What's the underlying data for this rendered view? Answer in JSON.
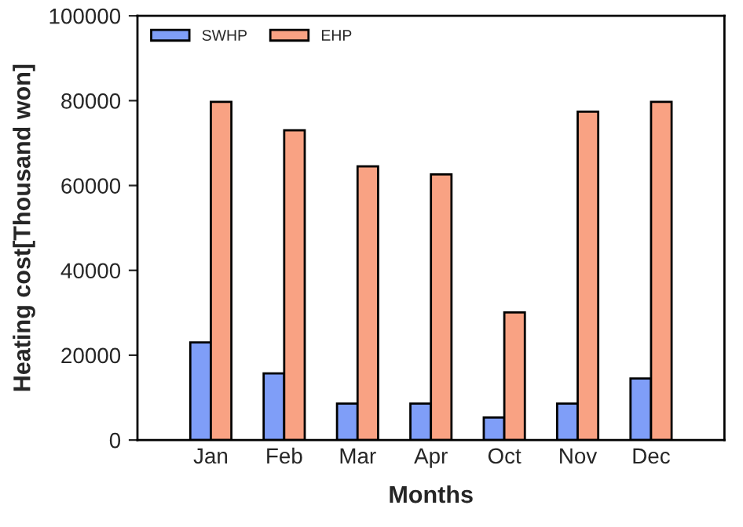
{
  "chart_data": {
    "type": "bar",
    "xlabel": "Months",
    "ylabel": "Heating cost[Thousand won]",
    "categories": [
      "Jan",
      "Feb",
      "Mar",
      "Apr",
      "Oct",
      "Nov",
      "Dec"
    ],
    "series": [
      {
        "name": "SWHP",
        "color": "#7f9ef8",
        "values": [
          23000,
          15700,
          8600,
          8600,
          5300,
          8600,
          14500
        ]
      },
      {
        "name": "EHP",
        "color": "#f9a283",
        "values": [
          79700,
          73000,
          64500,
          62600,
          30100,
          77400,
          79700
        ]
      }
    ],
    "ylim": [
      0,
      100000
    ],
    "yticks": [
      0,
      20000,
      40000,
      60000,
      80000,
      100000
    ],
    "grid": false,
    "legend": "top left"
  }
}
